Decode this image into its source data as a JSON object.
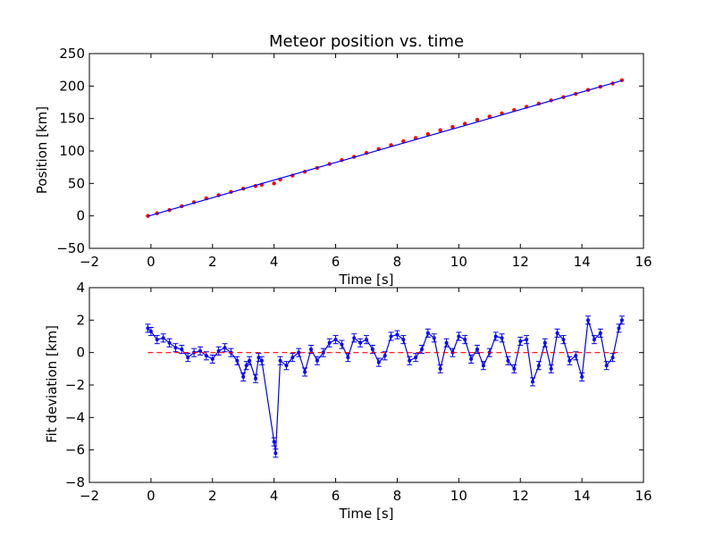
{
  "chart_data": [
    {
      "type": "scatter",
      "title": "Meteor position vs. time",
      "xlabel": "Time [s]",
      "ylabel": "Position [km]",
      "xlim": [
        -2,
        16
      ],
      "ylim": [
        -50,
        250
      ],
      "xticks": [
        -2,
        0,
        2,
        4,
        6,
        8,
        10,
        12,
        14,
        16
      ],
      "yticks": [
        -50,
        0,
        50,
        100,
        150,
        200,
        250
      ],
      "grid": false,
      "legend": "none",
      "series": [
        {
          "style": "red points",
          "color": "#ff0000",
          "x": [
            -0.1,
            0.2,
            0.6,
            1.0,
            1.4,
            1.8,
            2.2,
            2.6,
            3.0,
            3.4,
            3.6,
            4.0,
            4.2,
            4.6,
            5.0,
            5.4,
            5.8,
            6.2,
            6.6,
            7.0,
            7.4,
            7.8,
            8.2,
            8.6,
            9.0,
            9.4,
            9.8,
            10.2,
            10.6,
            11.0,
            11.4,
            11.8,
            12.2,
            12.6,
            13.0,
            13.4,
            13.8,
            14.2,
            14.6,
            15.0,
            15.3
          ],
          "y": [
            0,
            4,
            9,
            15,
            21,
            27,
            32,
            37,
            42,
            46,
            48,
            50,
            56,
            62,
            68,
            74,
            80,
            86,
            91,
            97,
            103,
            109,
            115,
            120,
            126,
            132,
            137,
            142,
            148,
            153,
            158,
            163,
            168,
            173,
            178,
            183,
            188,
            194,
            199,
            204,
            209
          ]
        },
        {
          "style": "blue fit line",
          "color": "#0000ff",
          "x": [
            -0.1,
            15.3
          ],
          "y": [
            -0.5,
            208.5
          ]
        }
      ]
    },
    {
      "type": "line",
      "title": "",
      "xlabel": "Time [s]",
      "ylabel": "Fit deviation [km]",
      "xlim": [
        -2,
        16
      ],
      "ylim": [
        -8,
        4
      ],
      "xticks": [
        -2,
        0,
        2,
        4,
        6,
        8,
        10,
        12,
        14,
        16
      ],
      "yticks": [
        -8,
        -6,
        -4,
        -2,
        0,
        2,
        4
      ],
      "grid": false,
      "legend": "none",
      "error": 0.25,
      "series": [
        {
          "style": "blue line with error bars",
          "color": "#0000ff",
          "x": [
            -0.1,
            0.0,
            0.2,
            0.4,
            0.6,
            0.8,
            1.0,
            1.2,
            1.4,
            1.6,
            1.8,
            2.0,
            2.2,
            2.4,
            2.6,
            2.8,
            3.0,
            3.1,
            3.2,
            3.4,
            3.5,
            3.6,
            4.0,
            4.05,
            4.2,
            4.4,
            4.6,
            4.8,
            5.0,
            5.2,
            5.4,
            5.6,
            5.8,
            6.0,
            6.2,
            6.4,
            6.6,
            6.8,
            7.0,
            7.2,
            7.4,
            7.6,
            7.8,
            8.0,
            8.2,
            8.4,
            8.6,
            8.8,
            9.0,
            9.2,
            9.4,
            9.6,
            9.8,
            10.0,
            10.2,
            10.4,
            10.6,
            10.8,
            11.0,
            11.2,
            11.4,
            11.6,
            11.8,
            12.0,
            12.2,
            12.4,
            12.6,
            12.8,
            13.0,
            13.2,
            13.4,
            13.6,
            13.8,
            14.0,
            14.2,
            14.4,
            14.6,
            14.8,
            15.0,
            15.2,
            15.3
          ],
          "y": [
            1.5,
            1.3,
            0.8,
            0.9,
            0.6,
            0.3,
            0.2,
            -0.3,
            0.0,
            0.1,
            -0.2,
            -0.4,
            0.1,
            0.3,
            0.0,
            -0.5,
            -1.5,
            -0.8,
            -0.5,
            -1.6,
            -0.3,
            -0.5,
            -5.5,
            -6.2,
            -0.5,
            -0.8,
            -0.3,
            0.0,
            -1.2,
            0.2,
            -0.5,
            0.0,
            0.6,
            0.8,
            0.5,
            -0.3,
            0.9,
            0.6,
            0.8,
            0.2,
            -0.6,
            -0.2,
            1.0,
            1.1,
            0.8,
            -0.5,
            -0.3,
            0.2,
            1.2,
            0.9,
            -1.0,
            0.6,
            0.0,
            1.0,
            0.8,
            -0.4,
            0.2,
            -0.8,
            0.0,
            1.0,
            0.9,
            -0.5,
            -1.0,
            0.7,
            0.8,
            -1.8,
            -0.8,
            0.6,
            -1.0,
            1.2,
            0.8,
            -0.5,
            -0.2,
            -1.5,
            2.0,
            0.8,
            1.2,
            -0.8,
            -0.3,
            1.5,
            2.0
          ]
        },
        {
          "style": "red dashed zero line",
          "color": "#ff0000",
          "x": [
            -0.1,
            15.3
          ],
          "y": [
            0,
            0
          ]
        }
      ]
    }
  ]
}
